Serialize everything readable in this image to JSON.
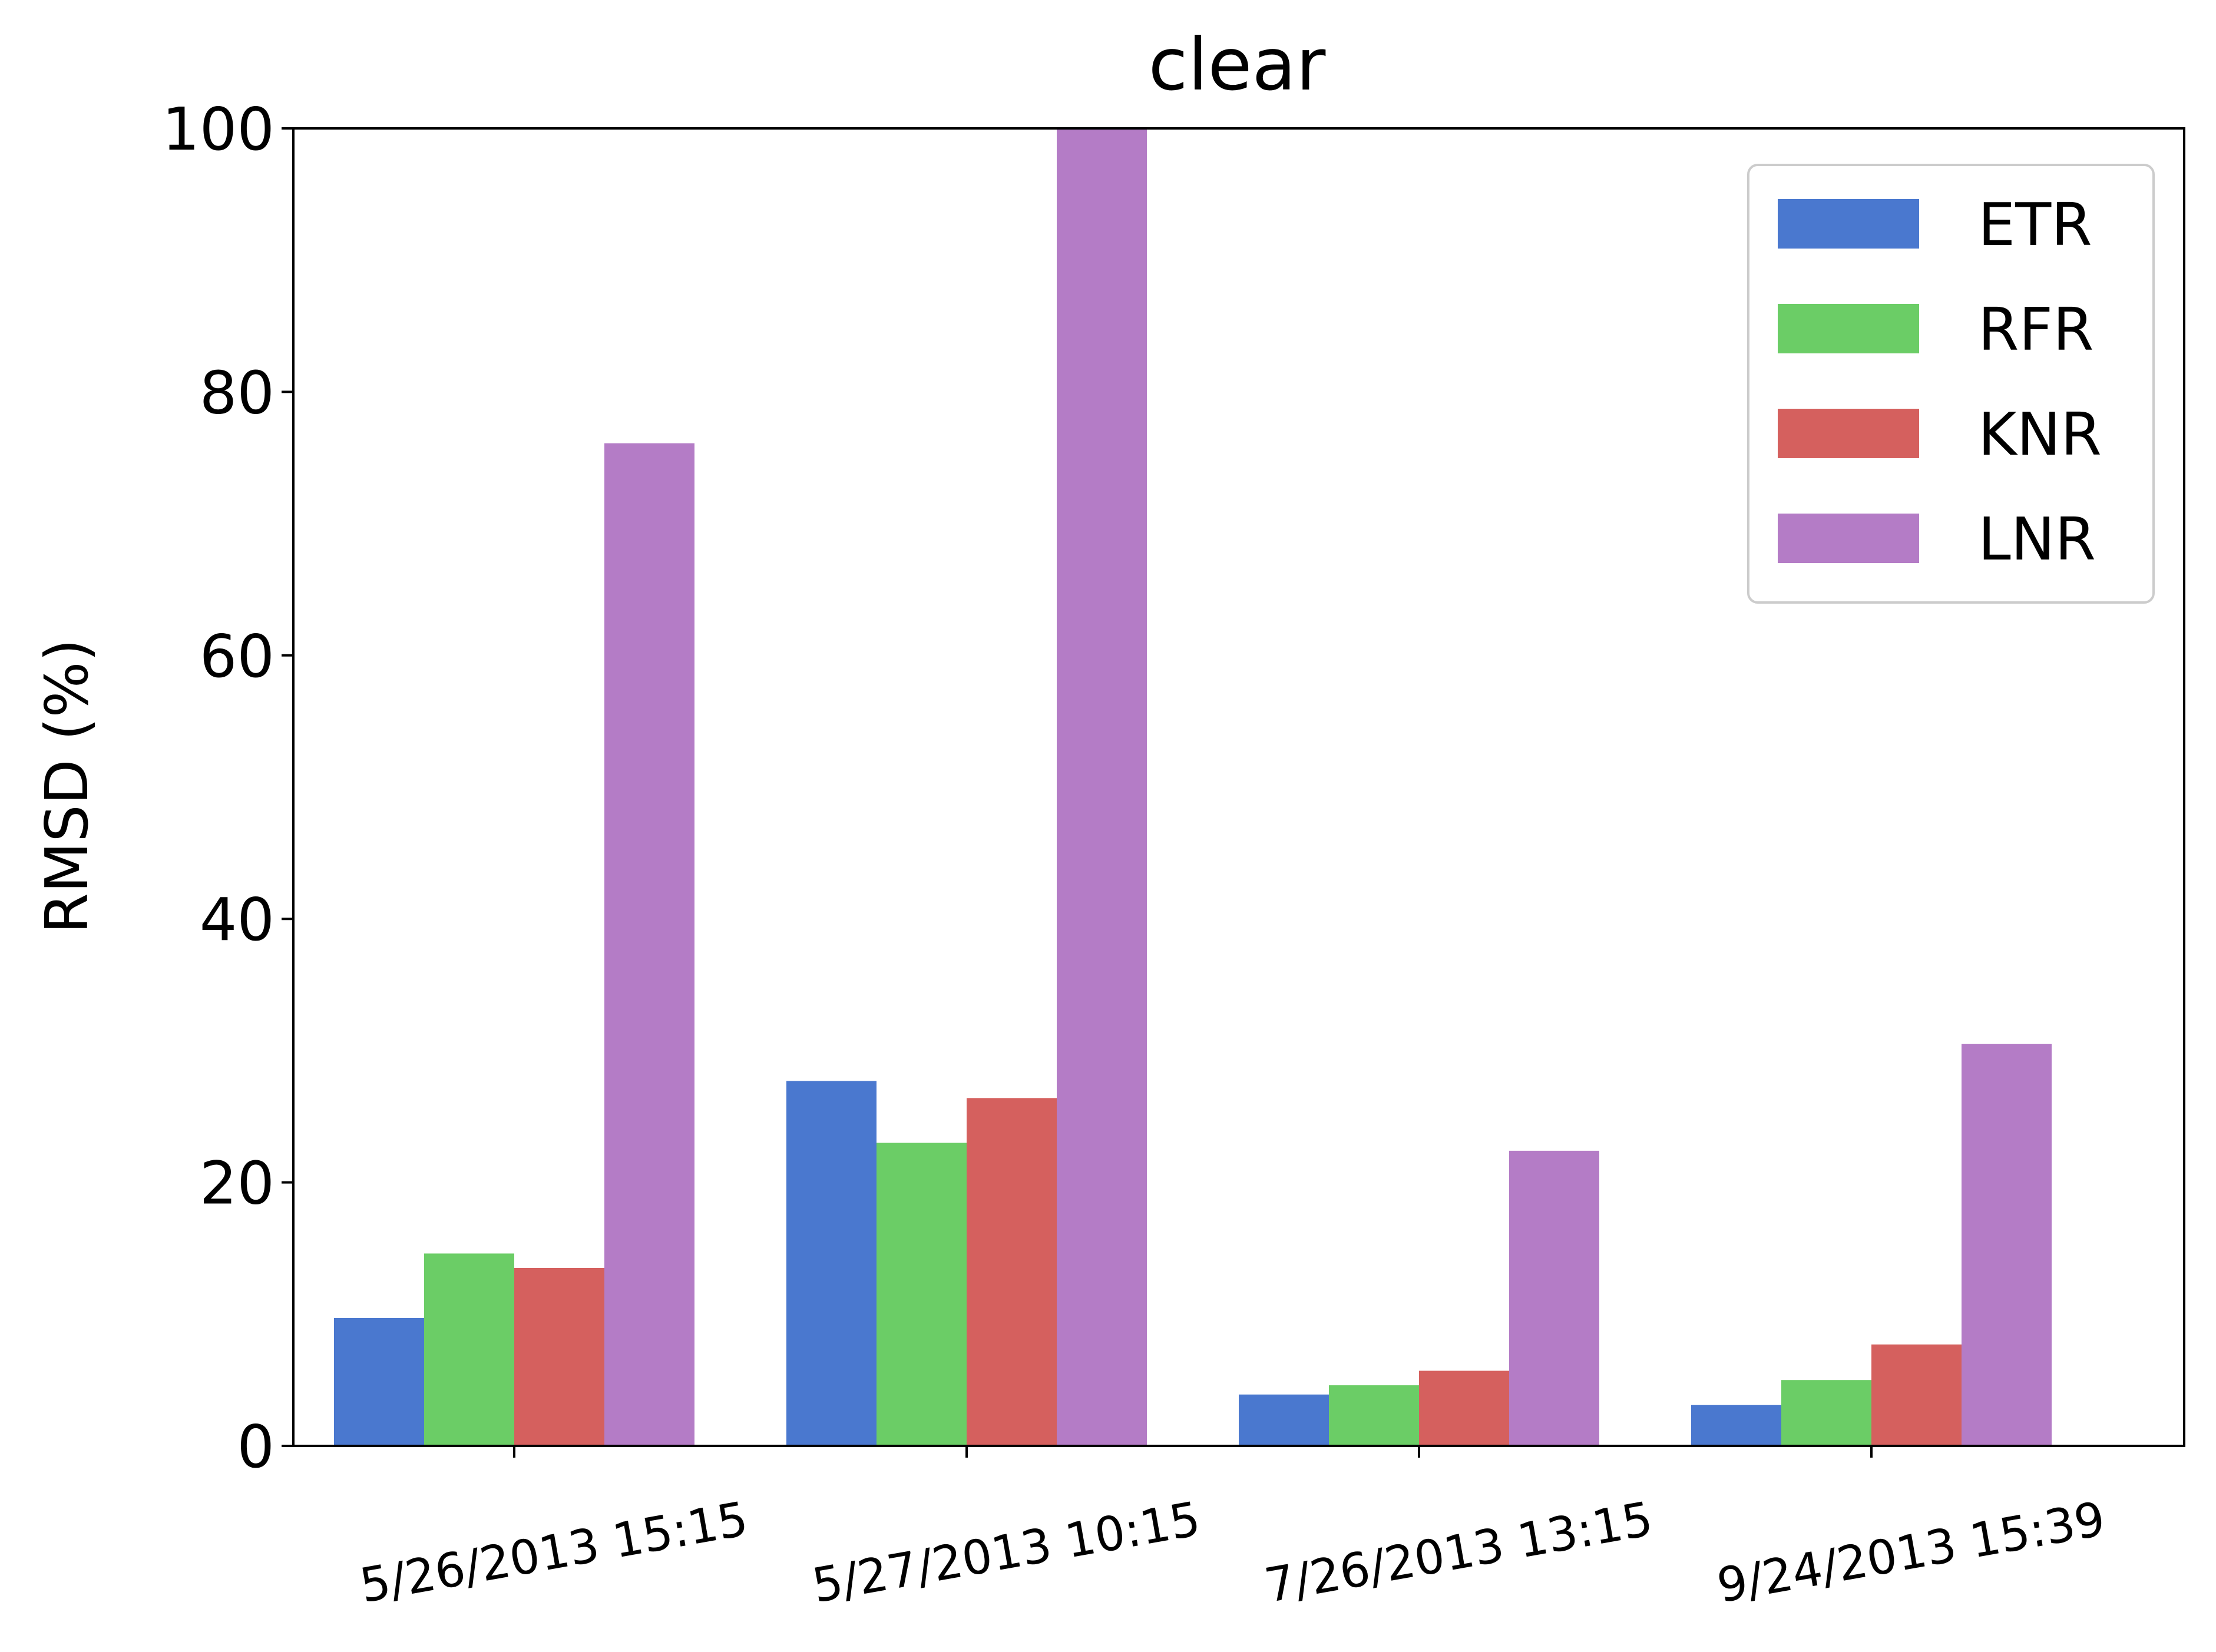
{
  "chart_data": {
    "type": "bar",
    "title": "clear",
    "xlabel": "",
    "ylabel": "RMSD (%)",
    "ylim": [
      0,
      100
    ],
    "yticks": [
      "0",
      "20",
      "40",
      "60",
      "80",
      "100"
    ],
    "categories": [
      "5/26/2013 15:15",
      "5/27/2013 10:15",
      "7/26/2013 13:15",
      "9/24/2013 15:39"
    ],
    "series": [
      {
        "name": "ETR",
        "color": "#4a78cf",
        "values": [
          9.7,
          27.7,
          3.9,
          3.1
        ]
      },
      {
        "name": "RFR",
        "color": "#6bcd66",
        "values": [
          14.6,
          23.0,
          4.6,
          5.0
        ]
      },
      {
        "name": "KNR",
        "color": "#d5605e",
        "values": [
          13.5,
          26.4,
          5.7,
          7.7
        ]
      },
      {
        "name": "LNR",
        "color": "#b47cc6",
        "values": [
          76.1,
          100,
          22.4,
          30.5
        ]
      }
    ],
    "grid": false,
    "legend_position": "top-right"
  }
}
